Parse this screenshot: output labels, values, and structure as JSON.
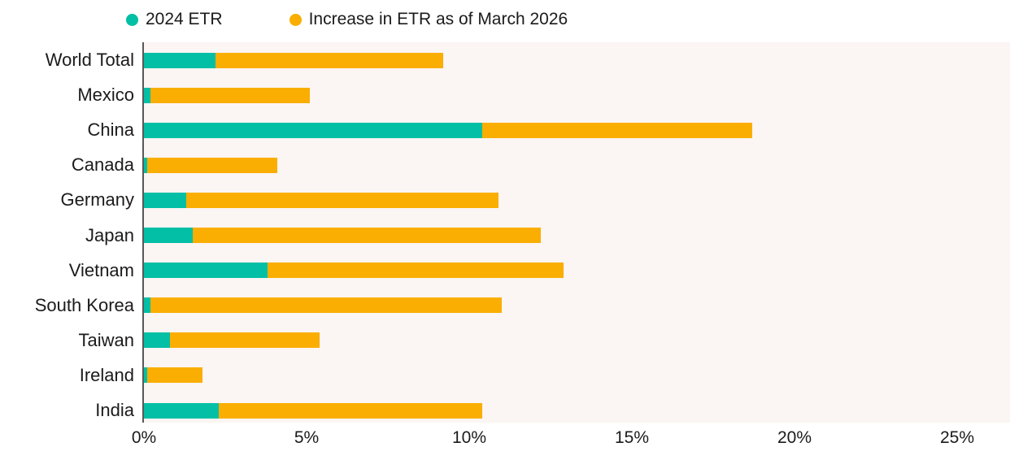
{
  "chart_data": {
    "type": "bar",
    "orientation": "horizontal",
    "stacked": true,
    "categories": [
      "World Total",
      "Mexico",
      "China",
      "Canada",
      "Germany",
      "Japan",
      "Vietnam",
      "South Korea",
      "Taiwan",
      "Ireland",
      "India"
    ],
    "series": [
      {
        "name": "2024 ETR",
        "color": "#03BFA5",
        "values": [
          2.2,
          0.2,
          10.4,
          0.1,
          1.3,
          1.5,
          3.8,
          0.2,
          0.8,
          0.1,
          2.3
        ]
      },
      {
        "name": "Increase in ETR as of March 2026",
        "color": "#FAAE01",
        "values": [
          7.0,
          4.9,
          8.3,
          4.0,
          9.6,
          10.7,
          9.1,
          10.8,
          4.6,
          1.7,
          8.1
        ]
      }
    ],
    "x_ticks": {
      "values": [
        0,
        5,
        10,
        15,
        20,
        25
      ],
      "labels": [
        "0%",
        "5%",
        "10%",
        "15%",
        "20%",
        "25%"
      ]
    },
    "xlim": [
      0,
      26.1
    ],
    "grid": false,
    "legend_position": "top",
    "plot_background": "#FBF5F3",
    "axis_line_color": "#595959",
    "title": "",
    "xlabel": "",
    "ylabel": ""
  }
}
